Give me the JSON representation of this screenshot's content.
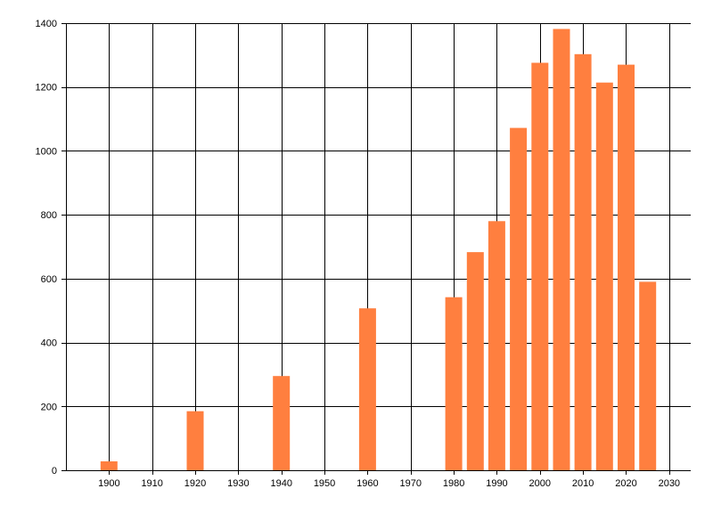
{
  "chart_data": {
    "type": "bar",
    "x": [
      1900,
      1920,
      1940,
      1960,
      1980,
      1985,
      1990,
      1995,
      2000,
      2005,
      2010,
      2015,
      2020,
      2025
    ],
    "values": [
      28,
      185,
      295,
      507,
      542,
      683,
      780,
      1072,
      1276,
      1382,
      1303,
      1214,
      1270,
      590
    ],
    "xlim": [
      1890,
      2035
    ],
    "ylim": [
      0,
      1400
    ],
    "x_ticks": [
      1900,
      1910,
      1920,
      1930,
      1940,
      1950,
      1960,
      1970,
      1980,
      1990,
      2000,
      2010,
      2020,
      2030
    ],
    "y_ticks": [
      0,
      200,
      400,
      600,
      800,
      1000,
      1200,
      1400
    ],
    "title": "",
    "xlabel": "",
    "ylabel": "",
    "grid": true,
    "legend": "none",
    "bar_color": "#FF7F3F",
    "grid_color": "#000000"
  }
}
